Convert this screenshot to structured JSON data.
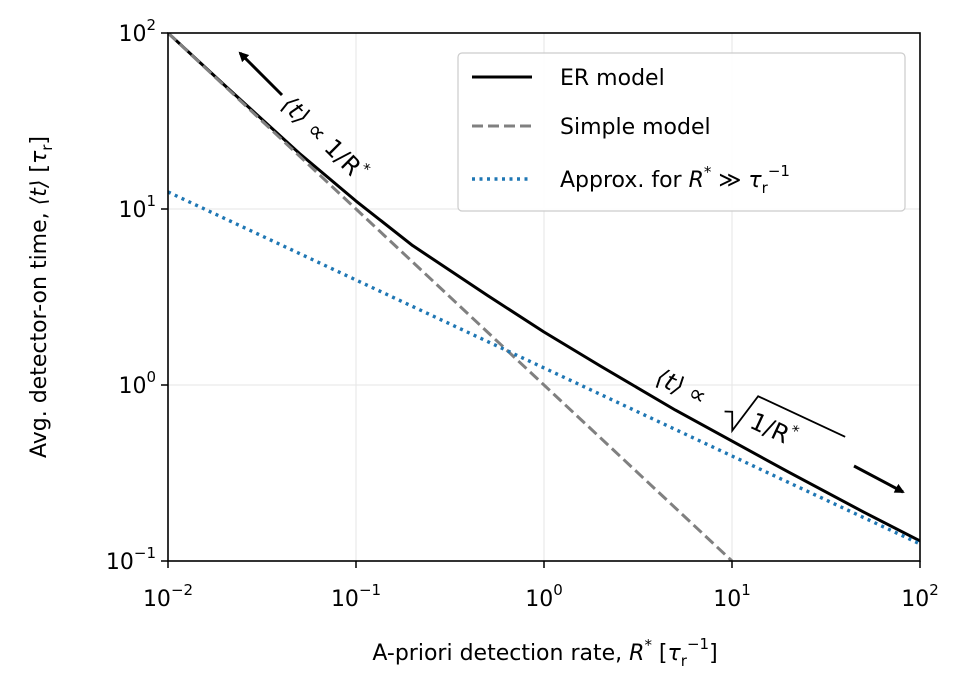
{
  "chart_data": {
    "type": "line",
    "scale": {
      "x": "log",
      "y": "log"
    },
    "xlim": [
      0.01,
      100
    ],
    "ylim": [
      0.1,
      100
    ],
    "grid": true,
    "x_ticks": [
      {
        "value": 0.01,
        "base": "10",
        "exp": "−2"
      },
      {
        "value": 0.1,
        "base": "10",
        "exp": "−1"
      },
      {
        "value": 1,
        "base": "10",
        "exp": "0"
      },
      {
        "value": 10,
        "base": "10",
        "exp": "1"
      },
      {
        "value": 100,
        "base": "10",
        "exp": "2"
      }
    ],
    "y_ticks": [
      {
        "value": 0.1,
        "base": "10",
        "exp": "−1"
      },
      {
        "value": 1,
        "base": "10",
        "exp": "0"
      },
      {
        "value": 10,
        "base": "10",
        "exp": "1"
      },
      {
        "value": 100,
        "base": "10",
        "exp": "2"
      }
    ],
    "xlabel": {
      "text": "A-priori detection rate, ",
      "var": "R",
      "var_sup": "*",
      "unit_open": " [",
      "unit_var": "τ",
      "unit_sub": "r",
      "unit_sup": "−1",
      "unit_close": "]"
    },
    "ylabel": {
      "text": "Avg. detector-on time, ",
      "bracket": "⟨t⟩",
      "unit_open": " [",
      "unit_var": "τ",
      "unit_sub": "r",
      "unit_close": "]"
    },
    "series": [
      {
        "name": "ER model",
        "color": "#000000",
        "style": "solid",
        "x": [
          0.01,
          0.02,
          0.05,
          0.1,
          0.2,
          0.5,
          1,
          2,
          5,
          10,
          20,
          50,
          100
        ],
        "y": [
          100,
          50.5,
          20.7,
          11.1,
          6.2,
          3.23,
          2.0,
          1.28,
          0.72,
          0.48,
          0.32,
          0.19,
          0.13
        ]
      },
      {
        "name": "Simple model",
        "color": "#808080",
        "style": "dashed",
        "x": [
          0.01,
          0.1,
          1,
          10
        ],
        "y": [
          100,
          10,
          1,
          0.1
        ]
      },
      {
        "name": "Approx. for ",
        "name_math": {
          "var": "R",
          "var_sup": "*",
          "rel": " ≫ ",
          "var2": "τ",
          "var2_sub": "r",
          "var2_sup": "−1"
        },
        "color": "#1f77b4",
        "style": "dotted",
        "x": [
          0.01,
          0.1,
          1,
          10,
          100
        ],
        "y": [
          12.5,
          3.95,
          1.25,
          0.395,
          0.125
        ]
      }
    ],
    "legend": {
      "position": "top-right"
    },
    "annotations": [
      {
        "id": "low",
        "bracket": "⟨t⟩",
        "rel": " ∝ ",
        "expr": "1/R",
        "sup": "*"
      },
      {
        "id": "high",
        "bracket": "⟨t⟩",
        "rel": " ∝ ",
        "sqrt_expr": "1/R",
        "sup": "*"
      }
    ]
  }
}
